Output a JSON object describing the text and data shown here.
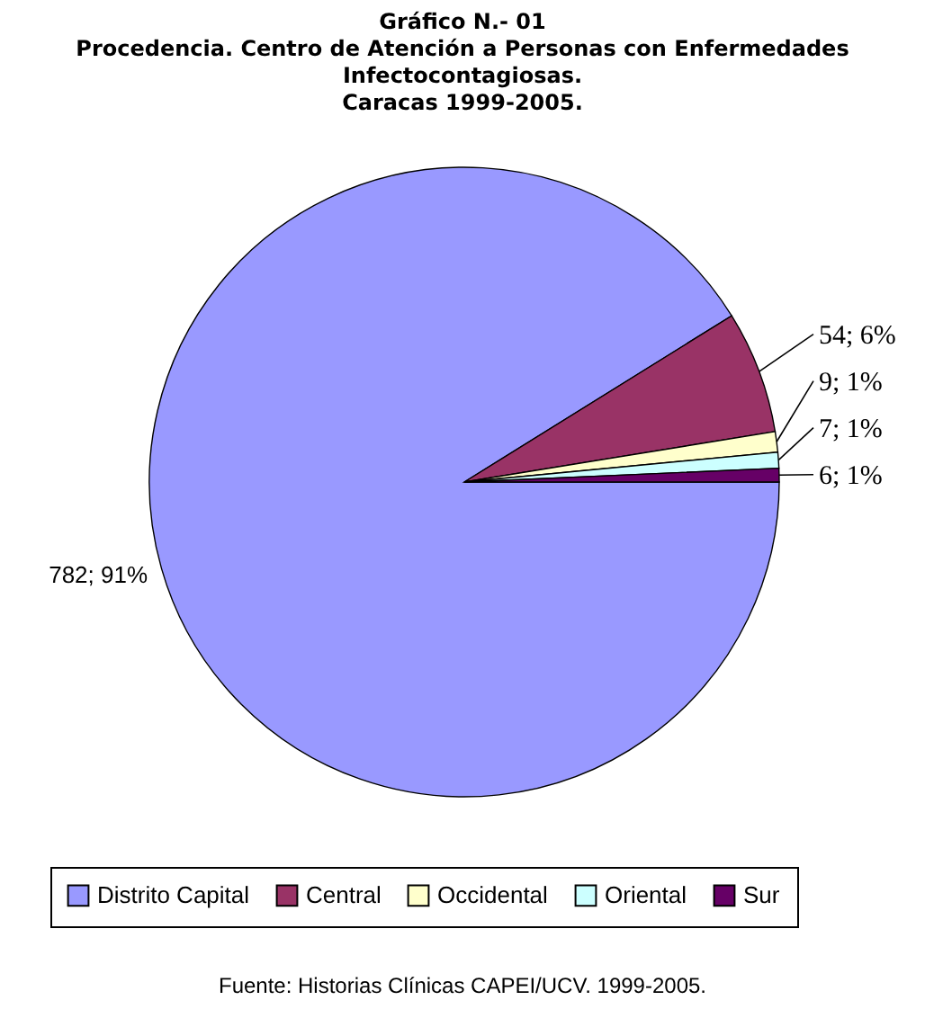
{
  "chart_data": {
    "type": "pie",
    "title": "Gráfico N.- 01\nProcedencia. Centro de Atención a Personas con Enfermedades\nInfectocontagiosas.\nCaracas 1999-2005.",
    "categories": [
      "Distrito Capital",
      "Central",
      "Occidental",
      "Oriental",
      "Sur"
    ],
    "values": [
      782,
      54,
      9,
      7,
      6
    ],
    "colors": [
      "#9999ff",
      "#993366",
      "#ffffcc",
      "#ccffff",
      "#660066"
    ],
    "value_labels": [
      "782; 91%",
      "54; 6%",
      "9; 1%",
      "7; 1%",
      "6; 1%"
    ],
    "legend": "bottom",
    "annotations": [
      "Fuente: Historias Clínicas CAPEI/UCV. 1999-2005."
    ]
  }
}
